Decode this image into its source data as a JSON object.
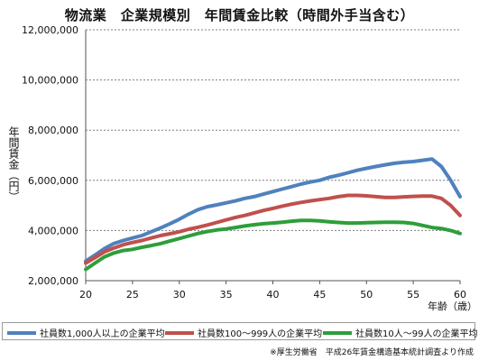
{
  "title": "物流業　企業規模別　年間賃金比較（時間外手当含む）",
  "source": "※厚生労働省　平成26年賃金構造基本統計調査より作成",
  "chart_data": {
    "type": "line",
    "title": "物流業　企業規模別　年間賃金比較（時間外手当含む）",
    "xlabel": "年齢（歳）",
    "ylabel": "年間賃金（円）",
    "xlim": [
      20,
      60
    ],
    "ylim": [
      2000000,
      12000000
    ],
    "xticks": [
      "20",
      "25",
      "30",
      "35",
      "40",
      "45",
      "50",
      "55",
      "60"
    ],
    "yticks": [
      "2,000,000",
      "4,000,000",
      "6,000,000",
      "8,000,000",
      "10,000,000",
      "12,000,000"
    ],
    "grid": "horizontal",
    "legend_position": "bottom",
    "x": [
      20,
      21,
      22,
      23,
      24,
      25,
      26,
      27,
      28,
      29,
      30,
      31,
      32,
      33,
      34,
      35,
      36,
      37,
      38,
      39,
      40,
      41,
      42,
      43,
      44,
      45,
      46,
      47,
      48,
      49,
      50,
      51,
      52,
      53,
      54,
      55,
      56,
      57,
      58,
      59,
      60
    ],
    "series": [
      {
        "name": "社員数1,000人以上の企業平均",
        "color": "#4f81bd",
        "values": [
          2780000,
          3020000,
          3280000,
          3480000,
          3600000,
          3700000,
          3800000,
          3950000,
          4100000,
          4270000,
          4450000,
          4650000,
          4830000,
          4950000,
          5020000,
          5100000,
          5180000,
          5280000,
          5350000,
          5450000,
          5550000,
          5650000,
          5750000,
          5850000,
          5930000,
          6000000,
          6120000,
          6200000,
          6300000,
          6400000,
          6480000,
          6550000,
          6620000,
          6680000,
          6720000,
          6750000,
          6800000,
          6850000,
          6550000,
          6000000,
          5350000
        ]
      },
      {
        "name": "社員数100～999人の企業平均",
        "color": "#c0504d",
        "values": [
          2700000,
          2920000,
          3150000,
          3300000,
          3430000,
          3520000,
          3600000,
          3700000,
          3800000,
          3870000,
          3950000,
          4050000,
          4130000,
          4220000,
          4320000,
          4420000,
          4520000,
          4600000,
          4700000,
          4800000,
          4880000,
          4970000,
          5050000,
          5120000,
          5180000,
          5230000,
          5280000,
          5350000,
          5400000,
          5400000,
          5380000,
          5350000,
          5320000,
          5320000,
          5340000,
          5360000,
          5370000,
          5370000,
          5280000,
          5000000,
          4600000
        ]
      },
      {
        "name": "社員数10人～99人の企業平均",
        "color": "#2e9e3a",
        "values": [
          2450000,
          2700000,
          2950000,
          3100000,
          3200000,
          3250000,
          3330000,
          3400000,
          3480000,
          3580000,
          3680000,
          3780000,
          3880000,
          3960000,
          4020000,
          4060000,
          4120000,
          4180000,
          4230000,
          4270000,
          4300000,
          4330000,
          4370000,
          4400000,
          4400000,
          4380000,
          4350000,
          4320000,
          4300000,
          4300000,
          4310000,
          4320000,
          4330000,
          4330000,
          4320000,
          4280000,
          4200000,
          4120000,
          4080000,
          4000000,
          3880000
        ]
      }
    ]
  }
}
